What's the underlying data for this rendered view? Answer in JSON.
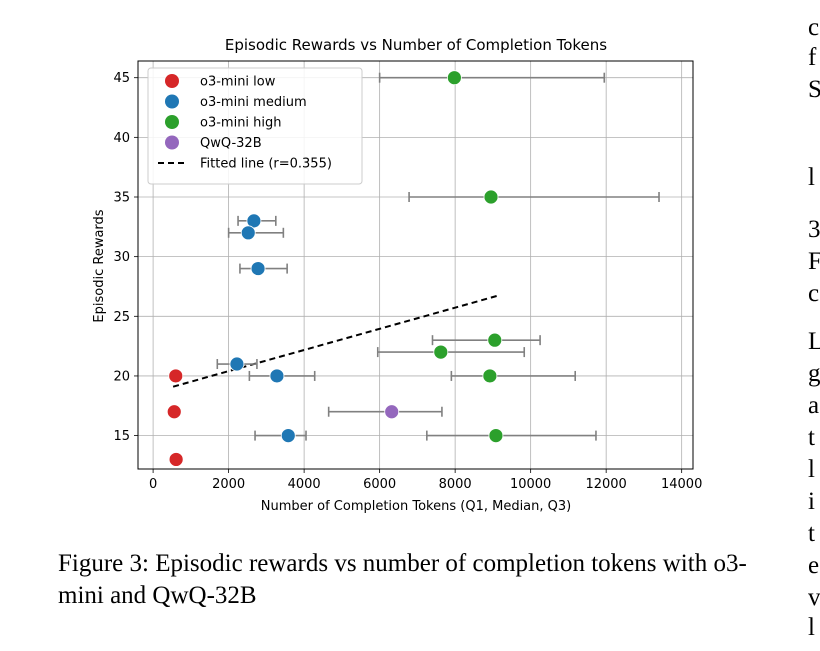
{
  "figure": {
    "caption": "Figure 3: Episodic rewards vs number of completion tokens with o3-mini and QwQ-32B"
  },
  "side_text": [
    {
      "text": "c"
    },
    {
      "text": "f"
    },
    {
      "text": "S"
    },
    {
      "text": "l"
    },
    {
      "text": "3"
    },
    {
      "text": "F"
    },
    {
      "text": "c"
    },
    {
      "text": "L"
    },
    {
      "text": "g"
    },
    {
      "text": "a"
    },
    {
      "text": "t"
    },
    {
      "text": "l"
    },
    {
      "text": "i"
    },
    {
      "text": "t"
    },
    {
      "text": "e"
    },
    {
      "text": "v"
    },
    {
      "text": "l"
    }
  ],
  "chart_data": {
    "type": "scatter",
    "title": "Episodic Rewards vs Number of Completion Tokens",
    "xlabel": "Number of Completion Tokens (Q1, Median, Q3)",
    "ylabel": "Episodic Rewards",
    "xlim": [
      -400,
      14300
    ],
    "ylim": [
      12.2,
      46.4
    ],
    "xticks": [
      0,
      2000,
      4000,
      6000,
      8000,
      10000,
      12000,
      14000
    ],
    "yticks": [
      15,
      20,
      25,
      30,
      35,
      40,
      45
    ],
    "grid": true,
    "legend_position": "top-left",
    "series": [
      {
        "name": "o3-mini low",
        "color": "#d62728",
        "points": [
          {
            "q1": 530,
            "median": 600,
            "q3": 660,
            "y": 20
          },
          {
            "q1": 480,
            "median": 560,
            "q3": 650,
            "y": 17
          },
          {
            "q1": 540,
            "median": 610,
            "q3": 680,
            "y": 13
          }
        ]
      },
      {
        "name": "o3-mini medium",
        "color": "#1f77b4",
        "points": [
          {
            "q1": 2250,
            "median": 2670,
            "q3": 3250,
            "y": 33
          },
          {
            "q1": 2000,
            "median": 2520,
            "q3": 3450,
            "y": 32
          },
          {
            "q1": 2300,
            "median": 2780,
            "q3": 3550,
            "y": 29
          },
          {
            "q1": 1700,
            "median": 2220,
            "q3": 2750,
            "y": 21
          },
          {
            "q1": 2550,
            "median": 3280,
            "q3": 4280,
            "y": 20
          },
          {
            "q1": 2700,
            "median": 3580,
            "q3": 4050,
            "y": 15
          }
        ]
      },
      {
        "name": "o3-mini high",
        "color": "#2ca02c",
        "points": [
          {
            "q1": 6000,
            "median": 7980,
            "q3": 11950,
            "y": 45
          },
          {
            "q1": 6780,
            "median": 8950,
            "q3": 13400,
            "y": 35
          },
          {
            "q1": 7400,
            "median": 9050,
            "q3": 10250,
            "y": 23
          },
          {
            "q1": 5950,
            "median": 7620,
            "q3": 9830,
            "y": 22
          },
          {
            "q1": 7900,
            "median": 8920,
            "q3": 11180,
            "y": 20
          },
          {
            "q1": 7250,
            "median": 9080,
            "q3": 11730,
            "y": 15
          }
        ]
      },
      {
        "name": "QwQ-32B",
        "color": "#9467bd",
        "points": [
          {
            "q1": 4650,
            "median": 6320,
            "q3": 7650,
            "y": 17
          }
        ]
      }
    ],
    "fit_line": {
      "name": "Fitted line (r=0.355)",
      "x": [
        530,
        9100
      ],
      "y": [
        19.1,
        26.7
      ],
      "color": "#000000"
    }
  }
}
